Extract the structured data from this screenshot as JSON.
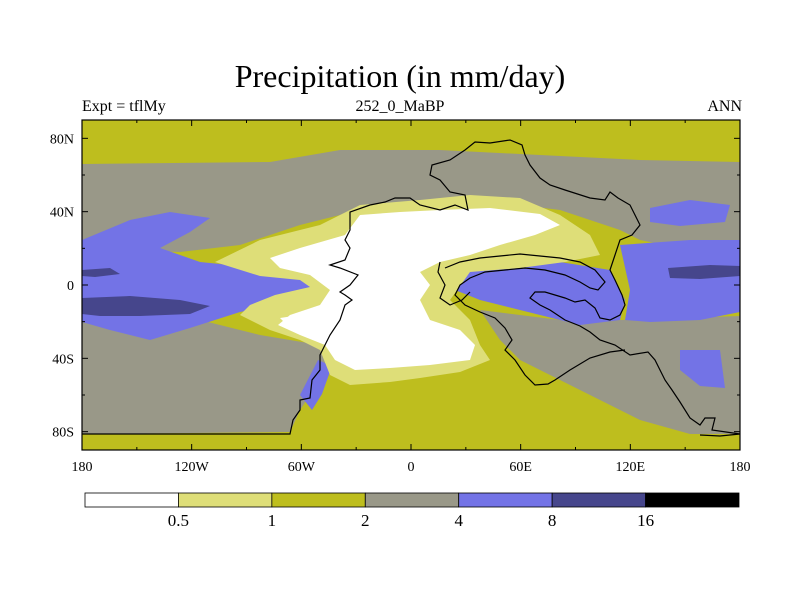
{
  "chart_data": {
    "type": "heatmap",
    "title": "Precipitation (in mm/day)",
    "subtitle_left": "Expt = tflMy",
    "subtitle_center": "252_0_MaBP",
    "subtitle_right": "ANN",
    "x_ticks": [
      "180",
      "120W",
      "60W",
      "0",
      "60E",
      "120E",
      "180"
    ],
    "x_tick_values": [
      -180,
      -120,
      -60,
      0,
      60,
      120,
      180
    ],
    "y_ticks": [
      "80N",
      "40N",
      "0",
      "40S",
      "80S"
    ],
    "y_tick_values": [
      80,
      40,
      0,
      -40,
      -80
    ],
    "xlim": [
      -180,
      180
    ],
    "ylim": [
      -90,
      90
    ],
    "colorbar": {
      "levels": [
        "0.5",
        "1",
        "2",
        "4",
        "8",
        "16"
      ],
      "colors": [
        "#ffffff",
        "#dede78",
        "#bebe1e",
        "#999888",
        "#7373e6",
        "#46468c",
        "#000000"
      ],
      "units": "mm/day"
    },
    "color_key": {
      "dry": "#ffffff",
      "light": "#dede78",
      "olive": "#bebe1e",
      "gray": "#999888",
      "blue": "#7373e6",
      "navy": "#46468c"
    }
  }
}
